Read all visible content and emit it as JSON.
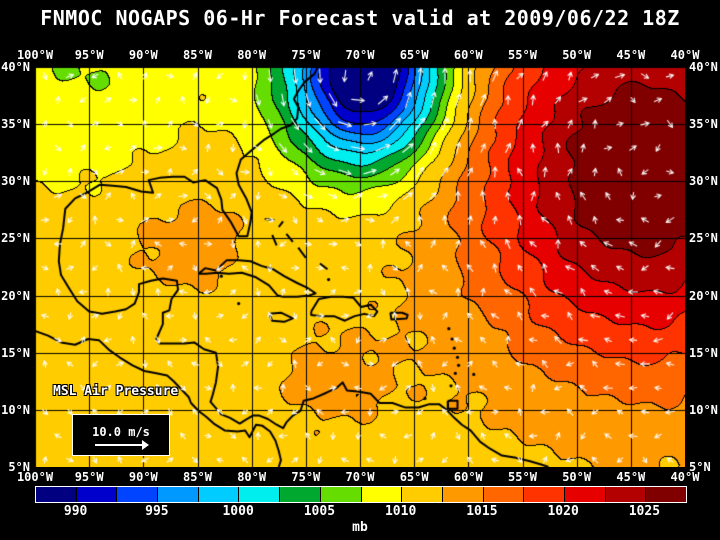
{
  "title": "FNMOC NOGAPS 06-Hr Forecast valid at 2009/06/22 18Z",
  "map": {
    "field_label": "MSL Air Pressure",
    "wind_scale_label": "10.0 m/s",
    "lon_labels": [
      "100°W",
      "95°W",
      "90°W",
      "85°W",
      "80°W",
      "75°W",
      "70°W",
      "65°W",
      "60°W",
      "55°W",
      "50°W",
      "45°W",
      "40°W"
    ],
    "lat_labels": [
      "40°N",
      "35°N",
      "30°N",
      "25°N",
      "20°N",
      "15°N",
      "10°N",
      "5°N"
    ]
  },
  "colorbar": {
    "unit": "mb",
    "tick_labels": [
      "990",
      "995",
      "1000",
      "1005",
      "1010",
      "1015",
      "1020",
      "1025"
    ],
    "colors": [
      "#000080",
      "#0000cc",
      "#0044ff",
      "#0099ff",
      "#00ccff",
      "#00eeee",
      "#00a830",
      "#66dd00",
      "#ffff00",
      "#ffcc00",
      "#ff9900",
      "#ff6600",
      "#ff3300",
      "#e60000",
      "#b30000",
      "#800000"
    ]
  },
  "chart_data": {
    "type": "heatmap",
    "title": "FNMOC NOGAPS 06-Hr Forecast valid at 2009/06/22 18Z",
    "variable": "MSL Air Pressure",
    "units": "mb",
    "lon_domain": [
      "100°W",
      "40°W"
    ],
    "lat_domain": [
      "5°N",
      "40°N"
    ],
    "grid_interval_deg": 5,
    "colorbar_ticks_mb": [
      990,
      995,
      1000,
      1005,
      1010,
      1015,
      1020,
      1025
    ],
    "features": [
      {
        "type": "low",
        "approx_center": "70°W 39°N",
        "approx_pressure_mb": 985
      },
      {
        "type": "high",
        "approx_center": "45°W 30°N",
        "approx_pressure_mb": 1026
      }
    ],
    "overlay": "wind vectors (white arrows), scale arrow = 10.0 m/s"
  }
}
